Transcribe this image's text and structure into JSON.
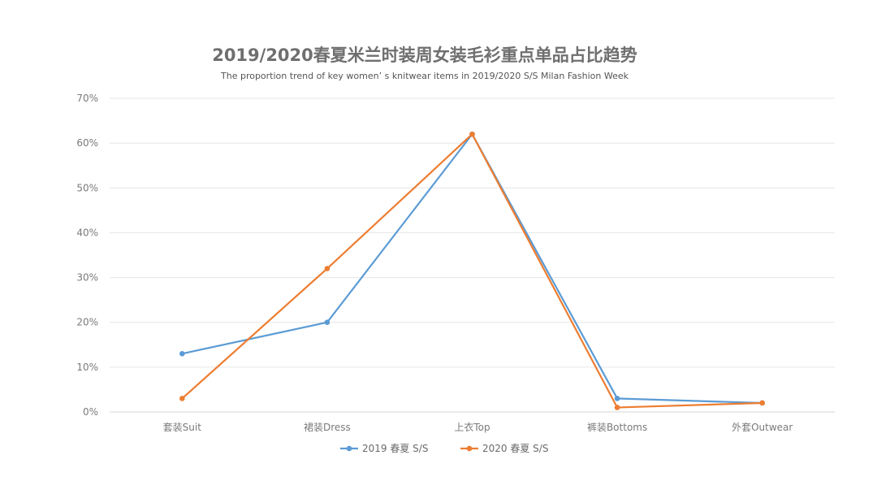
{
  "chart_data": {
    "type": "line",
    "title": "2019/2020春夏米兰时装周女装毛衫重点单品占比趋势",
    "subtitle": "The proportion trend of key women’ s knitwear items in 2019/2020 S/S Milan Fashion Week",
    "categories": [
      "套装Suit",
      "裙装Dress",
      "上衣Top",
      "裤装Bottoms",
      "外套Outwear"
    ],
    "yticks": [
      "0%",
      "10%",
      "20%",
      "30%",
      "40%",
      "50%",
      "60%",
      "70%"
    ],
    "ylim": [
      0,
      70
    ],
    "grid": true,
    "legend_position": "bottom",
    "series": [
      {
        "name": "2019 春夏 S/S",
        "color": "#5b9bd5",
        "values": [
          13,
          20,
          62,
          3,
          2
        ]
      },
      {
        "name": "2020 春夏 S/S",
        "color": "#ed7d31",
        "values": [
          3,
          32,
          62,
          1,
          2
        ]
      }
    ]
  }
}
